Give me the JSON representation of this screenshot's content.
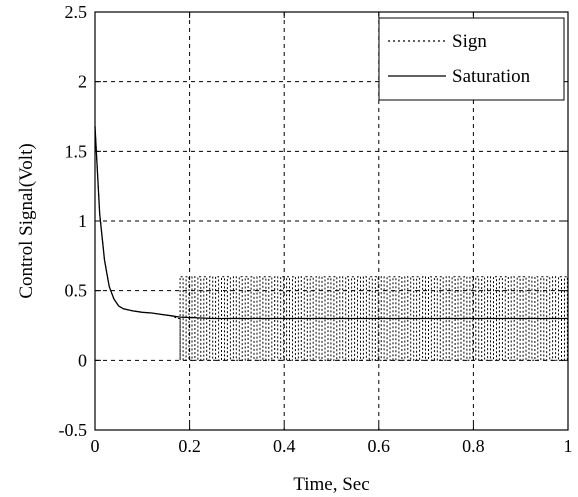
{
  "chart_data": {
    "type": "line",
    "xlabel": "Time, Sec",
    "ylabel": "Control Signal(Volt)",
    "xlim": [
      0,
      1
    ],
    "ylim": [
      -0.5,
      2.5
    ],
    "xticks": [
      0,
      0.2,
      0.4,
      0.6,
      0.8,
      1
    ],
    "xtick_labels": [
      "0",
      "0.2",
      "0.4",
      "0.6",
      "0.8",
      "1"
    ],
    "yticks": [
      -0.5,
      0,
      0.5,
      1,
      1.5,
      2,
      2.5
    ],
    "ytick_labels": [
      "-0.5",
      "0",
      "0.5",
      "1",
      "1.5",
      "2",
      "2.5"
    ],
    "grid": true,
    "legend_position": "top-right",
    "series": [
      {
        "name": "Sign",
        "style": "dotted",
        "color": "#000000",
        "x": [
          0,
          0.01,
          0.02,
          0.03,
          0.04,
          0.05,
          0.06,
          0.08,
          0.1,
          0.12,
          0.14,
          0.16,
          0.175,
          0.18
        ],
        "y": [
          1.68,
          1.05,
          0.72,
          0.53,
          0.44,
          0.39,
          0.37,
          0.355,
          0.345,
          0.34,
          0.33,
          0.32,
          0.3,
          0.3
        ],
        "switching": {
          "start": 0.18,
          "end": 1.0,
          "period": 0.0125,
          "low": 0.0,
          "high": 0.6
        }
      },
      {
        "name": "Saturation",
        "style": "solid",
        "color": "#000000",
        "x": [
          0,
          0.01,
          0.02,
          0.03,
          0.04,
          0.05,
          0.06,
          0.08,
          0.1,
          0.12,
          0.14,
          0.16,
          0.18,
          0.25,
          0.4,
          0.6,
          0.8,
          1.0
        ],
        "y": [
          1.68,
          1.05,
          0.72,
          0.53,
          0.44,
          0.39,
          0.37,
          0.355,
          0.345,
          0.34,
          0.33,
          0.32,
          0.31,
          0.3,
          0.3,
          0.3,
          0.3,
          0.3
        ]
      }
    ]
  }
}
